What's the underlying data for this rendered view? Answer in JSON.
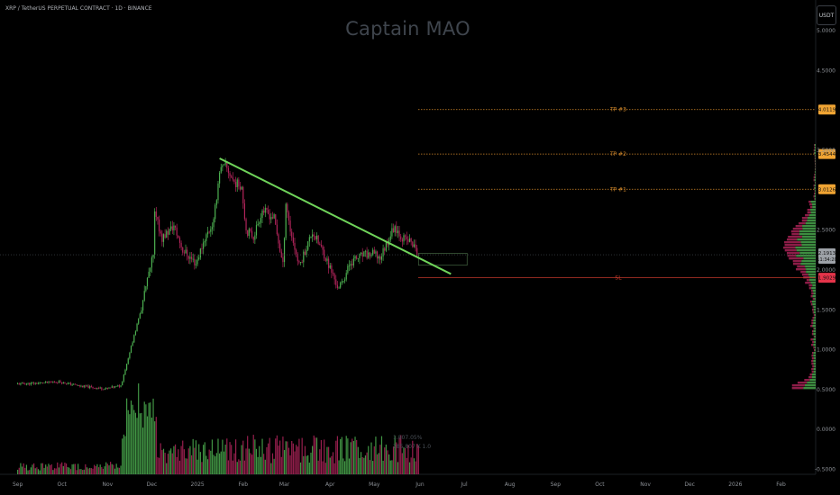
{
  "header": {
    "symbol_line": "XRP / TetherUS PERPETUAL CONTRACT · 1D · BINANCE"
  },
  "watermark": "Captain MAO",
  "currency_button": "USDT",
  "volume_legend": {
    "line1": "1.807.05%",
    "line2": "285.807 K 1.0"
  },
  "colors": {
    "up": "#4caf50",
    "down": "#b0245a",
    "trendline": "#6fd35a",
    "target_line": "#d58a2b",
    "stop_line": "#c0392b",
    "price_badge": "#9ea2a8"
  },
  "chart_data": {
    "type": "candlestick",
    "x_axis_labels": [
      "Sep",
      "Oct",
      "Nov",
      "Dec",
      "2025",
      "Feb",
      "Mar",
      "Apr",
      "May",
      "Jun",
      "Jul",
      "Aug",
      "Sep",
      "Oct",
      "Nov",
      "Dec",
      "2026",
      "Feb"
    ],
    "y_axis_labels": [
      "5.0000",
      "4.5000",
      "3.5000",
      "2.5000",
      "2.0000",
      "1.5000",
      "1.0000",
      "0.5000",
      "0.0000",
      "-0.5000"
    ],
    "ylim": [
      -0.5,
      5.25
    ],
    "price_path": [
      [
        "2024-09-01",
        0.57
      ],
      [
        "2024-09-15",
        0.58
      ],
      [
        "2024-09-28",
        0.6
      ],
      [
        "2024-10-15",
        0.54
      ],
      [
        "2024-10-31",
        0.51
      ],
      [
        "2024-11-10",
        0.55
      ],
      [
        "2024-11-15",
        0.9
      ],
      [
        "2024-11-23",
        1.45
      ],
      [
        "2024-12-02",
        2.2
      ],
      [
        "2024-12-03",
        2.7
      ],
      [
        "2024-12-08",
        2.4
      ],
      [
        "2024-12-16",
        2.55
      ],
      [
        "2024-12-22",
        2.25
      ],
      [
        "2024-12-31",
        2.08
      ],
      [
        "2025-01-06",
        2.4
      ],
      [
        "2025-01-12",
        2.6
      ],
      [
        "2025-01-16",
        3.25
      ],
      [
        "2025-01-20",
        3.3
      ],
      [
        "2025-01-26",
        3.1
      ],
      [
        "2025-01-31",
        3.05
      ],
      [
        "2025-02-03",
        2.5
      ],
      [
        "2025-02-08",
        2.42
      ],
      [
        "2025-02-14",
        2.75
      ],
      [
        "2025-02-22",
        2.65
      ],
      [
        "2025-02-28",
        2.05
      ],
      [
        "2025-03-02",
        2.85
      ],
      [
        "2025-03-05",
        2.5
      ],
      [
        "2025-03-11",
        2.05
      ],
      [
        "2025-03-20",
        2.48
      ],
      [
        "2025-03-28",
        2.2
      ],
      [
        "2025-04-07",
        1.75
      ],
      [
        "2025-04-15",
        2.1
      ],
      [
        "2025-04-23",
        2.18
      ],
      [
        "2025-04-30",
        2.2
      ],
      [
        "2025-05-05",
        2.15
      ],
      [
        "2025-05-12",
        2.45
      ],
      [
        "2025-05-15",
        2.55
      ],
      [
        "2025-05-20",
        2.4
      ],
      [
        "2025-05-26",
        2.35
      ],
      [
        "2025-05-31",
        2.19
      ]
    ],
    "volume_legend": [
      "1.807.05%",
      "285.807 K 1.0"
    ],
    "trendline": {
      "from": [
        "2025-01-16",
        3.4
      ],
      "to": [
        "2025-06-22",
        1.95
      ]
    },
    "horizontal_levels": [
      {
        "name": "TP #3",
        "value": 4.0119,
        "label": "4.0119"
      },
      {
        "name": "TP #2",
        "value": 3.4544,
        "label": "3.4544"
      },
      {
        "name": "TP #1",
        "value": 3.0126,
        "label": "3.0126"
      },
      {
        "name": "SL",
        "value": 1.9029,
        "label": "1.9029"
      }
    ],
    "current_price": {
      "value": 2.1913,
      "label": "2.1913",
      "countdown": "11:34:20"
    },
    "marked_zone": {
      "x_start": "2025-05-31",
      "x_end": "2025-07-03",
      "y_range": [
        2.06,
        2.21
      ]
    }
  }
}
